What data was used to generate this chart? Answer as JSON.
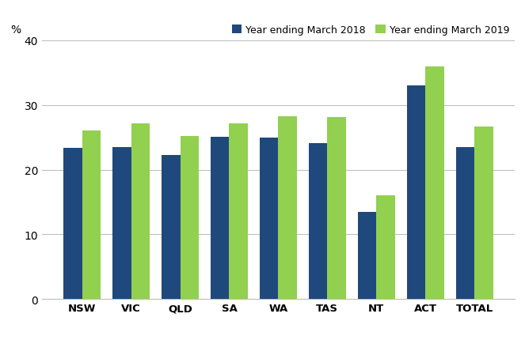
{
  "categories": [
    "NSW",
    "VIC",
    "QLD",
    "SA",
    "WA",
    "TAS",
    "NT",
    "ACT",
    "TOTAL"
  ],
  "series_2018": [
    23.3,
    23.5,
    22.2,
    25.1,
    24.9,
    24.1,
    13.5,
    33.0,
    23.5
  ],
  "series_2019": [
    26.0,
    27.2,
    25.2,
    27.1,
    28.3,
    28.1,
    16.0,
    35.9,
    26.6
  ],
  "color_2018": "#1f497d",
  "color_2019": "#92d050",
  "legend_2018": "Year ending March 2018",
  "legend_2019": "Year ending March 2019",
  "ylabel": "%",
  "ylim": [
    0,
    40
  ],
  "yticks": [
    0,
    10,
    20,
    30,
    40
  ],
  "bar_width": 0.38,
  "background_color": "#ffffff",
  "grid_color": "#bfbfbf"
}
